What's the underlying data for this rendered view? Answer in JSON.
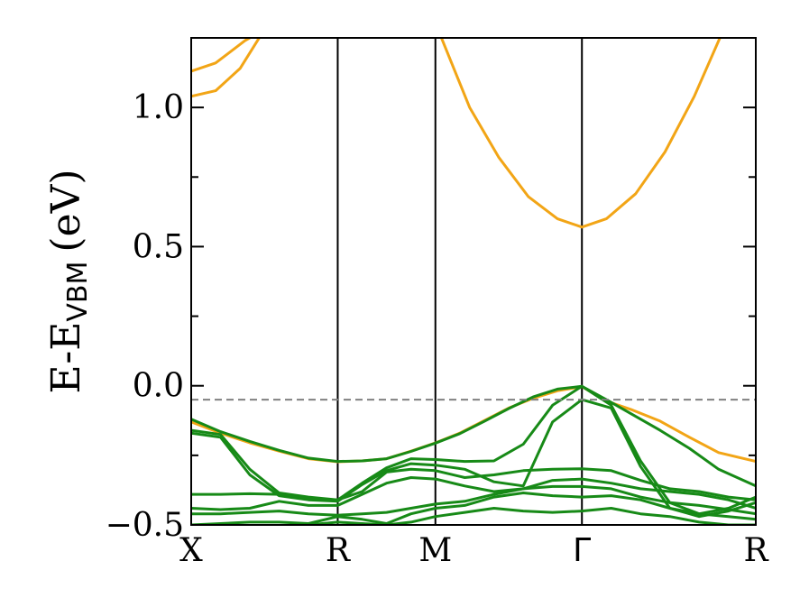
{
  "chart_data": {
    "type": "line",
    "title": "",
    "ylabel": "E-E",
    "ylabel_subscript": "VBM",
    "ylabel_unit": "(eV)",
    "xlabel": "",
    "ylim": [
      -0.5,
      1.25
    ],
    "xlim": [
      0,
      5.78
    ],
    "yticks": [
      -0.5,
      0.0,
      0.5,
      1.0
    ],
    "ytick_labels": [
      "−0.5",
      "0.0",
      "0.5",
      "1.0"
    ],
    "kpoints": [
      {
        "label": "X",
        "x": 0
      },
      {
        "label": "R",
        "x": 1.5
      },
      {
        "label": "M",
        "x": 2.5
      },
      {
        "label": "Γ",
        "x": 4.0
      },
      {
        "label": "R",
        "x": 5.78
      }
    ],
    "reference_line": {
      "y": -0.05,
      "style": "dashed",
      "color": "#808080"
    },
    "colors": {
      "conduction": "#f2a516",
      "valence": "#178a17",
      "frame": "#000000"
    },
    "series": [
      {
        "band": "conduction",
        "x": [
          0,
          0.25,
          0.55,
          0.75
        ],
        "y": [
          1.13,
          1.16,
          1.24,
          1.28
        ]
      },
      {
        "band": "conduction",
        "x": [
          0,
          0.25,
          0.5,
          0.75
        ],
        "y": [
          1.04,
          1.06,
          1.14,
          1.28
        ]
      },
      {
        "band": "conduction",
        "x": [
          2.4,
          2.55,
          2.85,
          3.15,
          3.45,
          3.75,
          4.0,
          4.25,
          4.55,
          4.85,
          5.15,
          5.45
        ],
        "y": [
          1.32,
          1.26,
          1.0,
          0.82,
          0.68,
          0.6,
          0.57,
          0.6,
          0.69,
          0.84,
          1.04,
          1.28
        ]
      },
      {
        "band": "conduction",
        "x": [
          0,
          0.3,
          0.6,
          0.9,
          1.2,
          1.5,
          1.75,
          2.0,
          2.25,
          2.5,
          2.75,
          3.0,
          3.25,
          3.5,
          3.75,
          4.0,
          4.25,
          4.5,
          4.8,
          5.1,
          5.4,
          5.78
        ],
        "y": [
          -0.13,
          -0.17,
          -0.205,
          -0.235,
          -0.262,
          -0.273,
          -0.27,
          -0.262,
          -0.235,
          -0.205,
          -0.17,
          -0.125,
          -0.08,
          -0.045,
          -0.018,
          -0.003,
          -0.055,
          -0.085,
          -0.127,
          -0.185,
          -0.24,
          -0.272
        ]
      },
      {
        "band": "valence",
        "x": [
          0,
          0.3,
          0.6,
          0.9,
          1.2,
          1.5,
          1.75,
          2.0,
          2.25,
          2.5,
          2.75,
          3.0,
          3.25,
          3.5,
          3.75,
          4.0,
          4.25,
          4.5,
          4.8,
          5.1,
          5.4,
          5.78
        ],
        "y": [
          -0.12,
          -0.165,
          -0.2,
          -0.232,
          -0.26,
          -0.272,
          -0.27,
          -0.262,
          -0.236,
          -0.206,
          -0.172,
          -0.128,
          -0.082,
          -0.04,
          -0.012,
          -0.002,
          -0.05,
          -0.1,
          -0.16,
          -0.225,
          -0.3,
          -0.36
        ]
      },
      {
        "band": "valence",
        "x": [
          0,
          0.3,
          0.6,
          0.9,
          1.2,
          1.5,
          1.75,
          2.0,
          2.25,
          2.5,
          2.8,
          3.1,
          3.4,
          3.7,
          4.0,
          4.3,
          4.6,
          4.9,
          5.2,
          5.5,
          5.78
        ],
        "y": [
          -0.16,
          -0.175,
          -0.3,
          -0.385,
          -0.4,
          -0.41,
          -0.35,
          -0.295,
          -0.262,
          -0.265,
          -0.272,
          -0.27,
          -0.21,
          -0.07,
          -0.002,
          -0.07,
          -0.27,
          -0.42,
          -0.46,
          -0.44,
          -0.4
        ]
      },
      {
        "band": "valence",
        "x": [
          0,
          0.3,
          0.6,
          0.9,
          1.2,
          1.5,
          1.75,
          2.0,
          2.25,
          2.5,
          2.8,
          3.1,
          3.4,
          3.7,
          4.0,
          4.3,
          4.6,
          4.9,
          5.2,
          5.5,
          5.78
        ],
        "y": [
          -0.17,
          -0.185,
          -0.32,
          -0.395,
          -0.41,
          -0.415,
          -0.355,
          -0.305,
          -0.28,
          -0.285,
          -0.3,
          -0.345,
          -0.36,
          -0.13,
          -0.05,
          -0.08,
          -0.29,
          -0.44,
          -0.47,
          -0.45,
          -0.42
        ]
      },
      {
        "band": "valence",
        "x": [
          0,
          0.3,
          0.6,
          0.9,
          1.2,
          1.5,
          1.75,
          2.0,
          2.25,
          2.5,
          2.8,
          3.1,
          3.4,
          3.7,
          4.0,
          4.3,
          4.6,
          4.9,
          5.2,
          5.5,
          5.78
        ],
        "y": [
          -0.39,
          -0.39,
          -0.388,
          -0.39,
          -0.405,
          -0.41,
          -0.38,
          -0.31,
          -0.3,
          -0.305,
          -0.33,
          -0.32,
          -0.305,
          -0.3,
          -0.298,
          -0.305,
          -0.34,
          -0.37,
          -0.38,
          -0.4,
          -0.41
        ]
      },
      {
        "band": "valence",
        "x": [
          0,
          0.3,
          0.6,
          0.9,
          1.2,
          1.5,
          1.75,
          2.0,
          2.25,
          2.5,
          2.8,
          3.1,
          3.4,
          3.7,
          4.0,
          4.3,
          4.6,
          4.9,
          5.2,
          5.5,
          5.78
        ],
        "y": [
          -0.44,
          -0.445,
          -0.44,
          -0.415,
          -0.43,
          -0.43,
          -0.39,
          -0.35,
          -0.33,
          -0.335,
          -0.36,
          -0.38,
          -0.37,
          -0.34,
          -0.335,
          -0.35,
          -0.37,
          -0.38,
          -0.39,
          -0.41,
          -0.44
        ]
      },
      {
        "band": "valence",
        "x": [
          0,
          0.3,
          0.6,
          0.9,
          1.2,
          1.5,
          1.75,
          2.0,
          2.25,
          2.5,
          2.8,
          3.1,
          3.4,
          3.7,
          4.0,
          4.3,
          4.6,
          4.9,
          5.2,
          5.5,
          5.78
        ],
        "y": [
          -0.46,
          -0.46,
          -0.455,
          -0.45,
          -0.46,
          -0.465,
          -0.46,
          -0.455,
          -0.44,
          -0.425,
          -0.415,
          -0.39,
          -0.37,
          -0.362,
          -0.362,
          -0.37,
          -0.4,
          -0.42,
          -0.43,
          -0.445,
          -0.46
        ]
      },
      {
        "band": "valence",
        "x": [
          0,
          0.3,
          0.6,
          0.9,
          1.2,
          1.5,
          1.75,
          2.0,
          2.25,
          2.5,
          2.8,
          3.1,
          3.4,
          3.7,
          4.0,
          4.3,
          4.6,
          4.9,
          5.2,
          5.5,
          5.78
        ],
        "y": [
          -0.5,
          -0.495,
          -0.49,
          -0.49,
          -0.495,
          -0.47,
          -0.48,
          -0.495,
          -0.46,
          -0.44,
          -0.43,
          -0.4,
          -0.385,
          -0.395,
          -0.4,
          -0.395,
          -0.41,
          -0.44,
          -0.46,
          -0.47,
          -0.48
        ]
      },
      {
        "band": "valence",
        "x": [
          0,
          0.3,
          0.6,
          0.9,
          1.2,
          1.5,
          1.75,
          2.0,
          2.25,
          2.5,
          2.8,
          3.1,
          3.4,
          3.7,
          4.0,
          4.3,
          4.6,
          4.9,
          5.2,
          5.5,
          5.78
        ],
        "y": [
          -0.52,
          -0.52,
          -0.52,
          -0.51,
          -0.5,
          -0.49,
          -0.495,
          -0.5,
          -0.49,
          -0.47,
          -0.455,
          -0.44,
          -0.45,
          -0.455,
          -0.45,
          -0.44,
          -0.46,
          -0.47,
          -0.49,
          -0.5,
          -0.5
        ]
      }
    ]
  }
}
